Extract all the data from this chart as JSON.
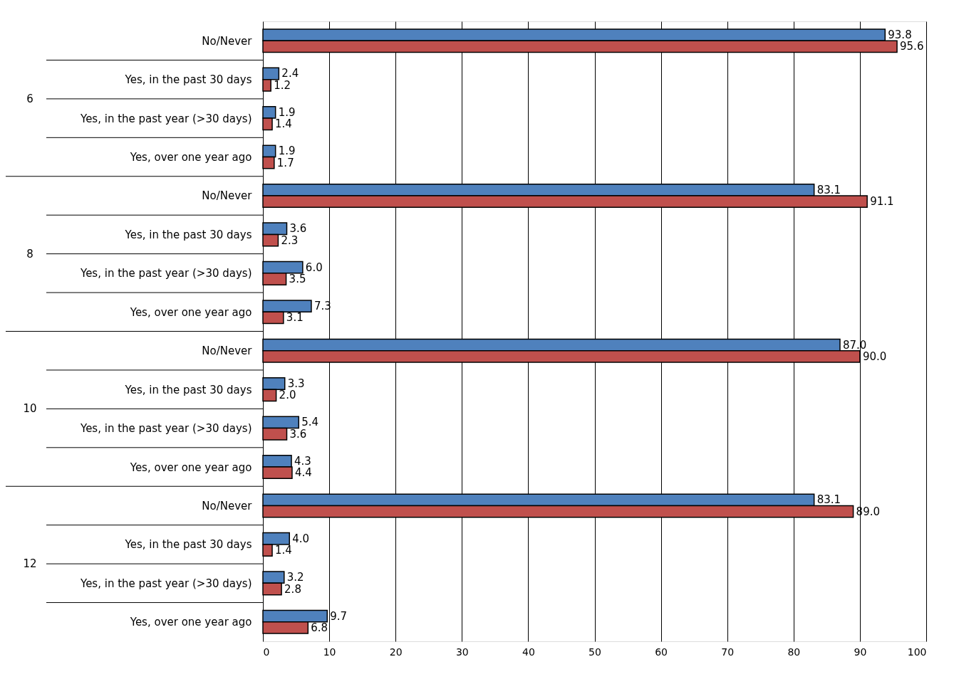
{
  "chart_data": {
    "type": "bar",
    "orientation": "horizontal",
    "categories": [
      "No/Never",
      "Yes, in the past 30 days",
      "Yes, in the past year (>30 days)",
      "Yes, over one year ago",
      "No/Never",
      "Yes, in the past 30 days",
      "Yes, in the past year (>30 days)",
      "Yes, over one year ago",
      "No/Never",
      "Yes, in the past 30 days",
      "Yes, in the past year (>30 days)",
      "Yes, over one year ago",
      "No/Never",
      "Yes, in the past 30 days",
      "Yes, in the past year (>30 days)",
      "Yes, over one year ago"
    ],
    "series": [
      {
        "color": "#4f81bd",
        "values": [
          93.8,
          2.4,
          1.9,
          1.9,
          83.1,
          3.6,
          6.0,
          7.3,
          87.0,
          3.3,
          5.4,
          4.3,
          83.1,
          4.0,
          3.2,
          9.7
        ],
        "value_labels": [
          "93.8",
          "2.4",
          "1.9",
          "1.9",
          "83.1",
          "3.6",
          "6.0",
          "7.3",
          "87.0",
          "3.3",
          "5.4",
          "4.3",
          "83.1",
          "4.0",
          "3.2",
          "9.7"
        ]
      },
      {
        "color": "#c0504d",
        "values": [
          95.6,
          1.2,
          1.4,
          1.7,
          91.1,
          2.3,
          3.5,
          3.1,
          90.0,
          2.0,
          3.6,
          4.4,
          89.0,
          1.4,
          2.8,
          6.8
        ],
        "value_labels": [
          "95.6",
          "1.2",
          "1.4",
          "1.7",
          "91.1",
          "2.3",
          "3.5",
          "3.1",
          "90.0",
          "2.0",
          "3.6",
          "4.4",
          "89.0",
          "1.4",
          "2.8",
          "6.8"
        ]
      }
    ],
    "annotations": [
      "6",
      "8",
      "10",
      "12"
    ],
    "xlim": [
      0,
      100
    ],
    "xticks": [
      0,
      10,
      20,
      30,
      40,
      50,
      60,
      70,
      80,
      90,
      100
    ],
    "grid": "x"
  }
}
